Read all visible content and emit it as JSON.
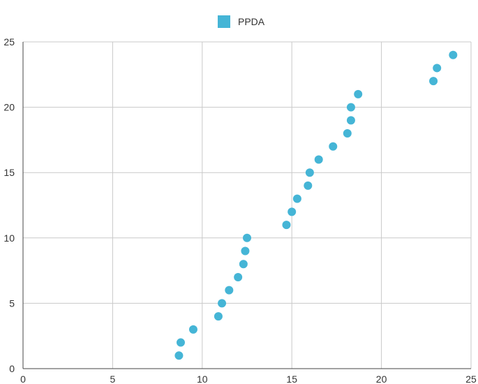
{
  "chart_data": {
    "type": "scatter",
    "title": "",
    "xlabel": "",
    "ylabel": "",
    "xlim": [
      0,
      25
    ],
    "ylim": [
      0,
      25
    ],
    "x_ticks": [
      0,
      5,
      10,
      15,
      20,
      25
    ],
    "y_ticks": [
      0,
      5,
      10,
      15,
      20,
      25
    ],
    "grid": true,
    "legend_position": "top-center",
    "series": [
      {
        "name": "PPDA",
        "color": "#45b5d6",
        "points": [
          {
            "x": 8.7,
            "y": 1
          },
          {
            "x": 8.8,
            "y": 2
          },
          {
            "x": 9.5,
            "y": 3
          },
          {
            "x": 10.9,
            "y": 4
          },
          {
            "x": 11.1,
            "y": 5
          },
          {
            "x": 11.5,
            "y": 6
          },
          {
            "x": 12.0,
            "y": 7
          },
          {
            "x": 12.3,
            "y": 8
          },
          {
            "x": 12.4,
            "y": 9
          },
          {
            "x": 12.5,
            "y": 10
          },
          {
            "x": 14.7,
            "y": 11
          },
          {
            "x": 15.0,
            "y": 12
          },
          {
            "x": 15.3,
            "y": 13
          },
          {
            "x": 15.9,
            "y": 14
          },
          {
            "x": 16.0,
            "y": 15
          },
          {
            "x": 16.5,
            "y": 16
          },
          {
            "x": 17.3,
            "y": 17
          },
          {
            "x": 18.1,
            "y": 18
          },
          {
            "x": 18.3,
            "y": 19
          },
          {
            "x": 18.3,
            "y": 20
          },
          {
            "x": 18.7,
            "y": 21
          },
          {
            "x": 22.9,
            "y": 22
          },
          {
            "x": 23.1,
            "y": 23
          },
          {
            "x": 24.0,
            "y": 24
          }
        ]
      }
    ]
  }
}
